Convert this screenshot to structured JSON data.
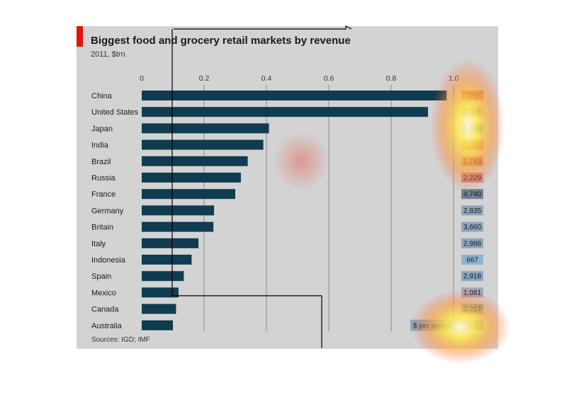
{
  "chart_data": {
    "type": "bar",
    "orientation": "horizontal",
    "title": "Biggest food and grocery retail markets by revenue",
    "subtitle": "2011, $trn",
    "source": "Sources: IGD; IMF",
    "xlim": [
      0,
      1.0
    ],
    "ticks": [
      "0",
      "0.2",
      "0.4",
      "0.6",
      "0.8",
      "1.0"
    ],
    "tick_values": [
      0,
      0.2,
      0.4,
      0.6,
      0.8,
      1.0
    ],
    "grid": true,
    "categories": [
      "China",
      "United States",
      "Japan",
      "India",
      "Brazil",
      "Russia",
      "France",
      "Germany",
      "Britain",
      "Italy",
      "Indonesia",
      "Spain",
      "Mexico",
      "Canada",
      "Australia"
    ],
    "values": [
      0.978,
      0.918,
      0.408,
      0.39,
      0.34,
      0.318,
      0.3,
      0.232,
      0.23,
      0.182,
      0.16,
      0.135,
      0.118,
      0.11,
      0.1
    ],
    "per_person_label": "$ per person",
    "per_person": [
      "722",
      "2,931",
      "3,183",
      "324",
      "1,743",
      "2,229",
      "4,740",
      "2,835",
      "3,660",
      "2,988",
      "667",
      "2,918",
      "1,081",
      "3,217",
      "4,7"
    ],
    "per_person_colors": [
      "#e07a70",
      "#b8a0ad",
      "#7f8fa3",
      "#e07a70",
      "#cf8a86",
      "#c98a8c",
      "#6f8096",
      "#8aa6c0",
      "#8aa6c0",
      "#8aa6c0",
      "#8fb3cc",
      "#8aa6c0",
      "#a8a2b6",
      "#8aa6c0",
      "#8aa6c0"
    ],
    "colors": {
      "bar": "#0f3c50",
      "grid": "#8a8a8a",
      "accent": "#e3120b",
      "panel": "#d3d3d3"
    }
  }
}
